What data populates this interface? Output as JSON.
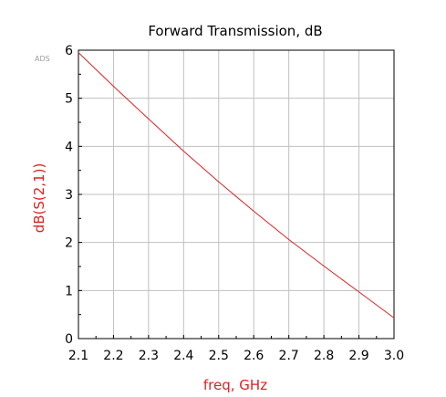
{
  "chart_data": {
    "type": "line",
    "title": "Forward Transmission, dB",
    "xlabel": "freq, GHz",
    "ylabel": "dB(S(2,1))",
    "watermark": "ADS",
    "xlim": [
      2.1,
      3.0
    ],
    "ylim": [
      0,
      6
    ],
    "grid": true,
    "x_ticks": [
      "2.1",
      "2.2",
      "2.3",
      "2.4",
      "2.5",
      "2.6",
      "2.7",
      "2.8",
      "2.9",
      "3.0"
    ],
    "y_ticks": [
      "0",
      "1",
      "2",
      "3",
      "4",
      "5",
      "6"
    ],
    "label_color": "#e02020",
    "line_color": "#e02020",
    "grid_color": "#c0c0c0",
    "series": [
      {
        "x": [
          2.1,
          2.2,
          2.3,
          2.4,
          2.5,
          2.6,
          2.7,
          2.8,
          2.9,
          3.0
        ],
        "y": [
          5.95,
          5.25,
          4.57,
          3.9,
          3.26,
          2.65,
          2.06,
          1.51,
          0.97,
          0.43
        ]
      }
    ]
  }
}
